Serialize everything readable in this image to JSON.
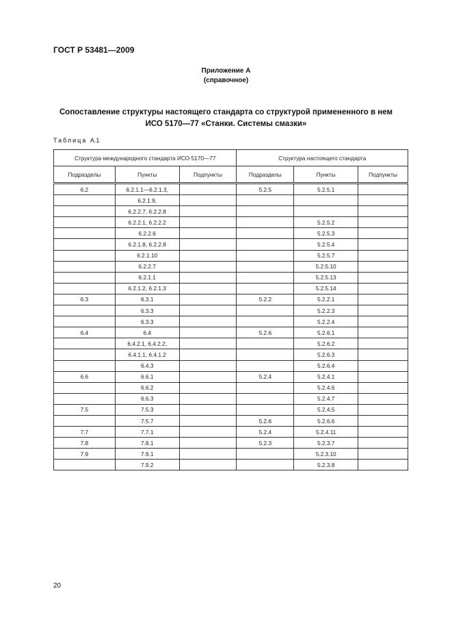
{
  "header": {
    "doc_id": "ГОСТ Р 53481—2009"
  },
  "annex": {
    "title": "Приложение А",
    "subtitle": "(справочное)"
  },
  "title": {
    "line1": "Сопоставление структуры настоящего стандарта со структурой примененного в нем",
    "line2": "ИСО 5170—77 «Станки. Системы смазки»"
  },
  "table_label": {
    "prefix": "Таблица",
    "number": "А.1"
  },
  "table": {
    "group_headers": [
      "Структура международного стандарта ИСО 5170—77",
      "Структура настоящего стандарта"
    ],
    "columns": [
      "Подразделы",
      "Пункты",
      "Подпункты",
      "Подразделы",
      "Пункты",
      "Подпункты"
    ],
    "rows": [
      [
        "6.2",
        "6.2.1.1—6.2.1.3,",
        "",
        "5.2.5",
        "5.2.5.1",
        ""
      ],
      [
        "",
        "6.2.1.9,",
        "",
        "",
        "",
        ""
      ],
      [
        "",
        "6.2.2.7, 6.2.2.8",
        "",
        "",
        "",
        ""
      ],
      [
        "",
        "6.2.2.1, 6.2.2.2",
        "",
        "",
        "5.2.5.2",
        ""
      ],
      [
        "",
        "6.2.2.6",
        "",
        "",
        "5.2.5.3",
        ""
      ],
      [
        "",
        "6.2.1.8, 6.2.2.8",
        "",
        "",
        "5.2.5.4",
        ""
      ],
      [
        "",
        "6.2.1.10",
        "",
        "",
        "5.2.5.7",
        ""
      ],
      [
        "",
        "6.2.2.7",
        "",
        "",
        "5.2.5.10",
        ""
      ],
      [
        "",
        "6.2.1.1",
        "",
        "",
        "5.2.5.13",
        ""
      ],
      [
        "",
        "6.2.1.2, 6.2.1.3",
        "",
        "",
        "5.2.5.14",
        ""
      ],
      [
        "6.3",
        "6.3.1",
        "",
        "5.2.2",
        "5.2.2.1",
        ""
      ],
      [
        "",
        "6.3.3",
        "",
        "",
        "5.2.2.3",
        ""
      ],
      [
        "",
        "6.3.3",
        "",
        "",
        "5.2.2.4",
        ""
      ],
      [
        "6.4",
        "6.4",
        "",
        "5.2.6",
        "5.2.6.1",
        ""
      ],
      [
        "",
        "6.4.2.1, 6.4.2.2,",
        "",
        "",
        "5.2.6.2",
        ""
      ],
      [
        "",
        "6.4.1.1, 6.4.1.2",
        "",
        "",
        "5.2.6.3",
        ""
      ],
      [
        "",
        "6.4.3",
        "",
        "",
        "5.2.6.4",
        ""
      ],
      [
        "6.6",
        "6.6.1",
        "",
        "5.2.4",
        "5.2.4.1",
        ""
      ],
      [
        "",
        "6.6.2",
        "",
        "",
        "5.2.4.6",
        ""
      ],
      [
        "",
        "6.6.3",
        "",
        "",
        "5.2.4.7",
        ""
      ],
      [
        "7.5",
        "7.5.3",
        "",
        "",
        "5.2.4.5",
        ""
      ],
      [
        "",
        "7.5.7",
        "",
        "5.2.6",
        "5.2.6.6",
        ""
      ],
      [
        "7.7",
        "7.7.1",
        "",
        "5.2.4",
        "5.2.4.11",
        ""
      ],
      [
        "7.8",
        "7.8.1",
        "",
        "5.2.3",
        "5.2.3.7",
        ""
      ],
      [
        "7.9",
        "7.9.1",
        "",
        "",
        "5.2.3.10",
        ""
      ],
      [
        "",
        "7.9.2",
        "",
        "",
        "5.2.3.8",
        ""
      ]
    ]
  },
  "footer": {
    "page_number": "20"
  }
}
